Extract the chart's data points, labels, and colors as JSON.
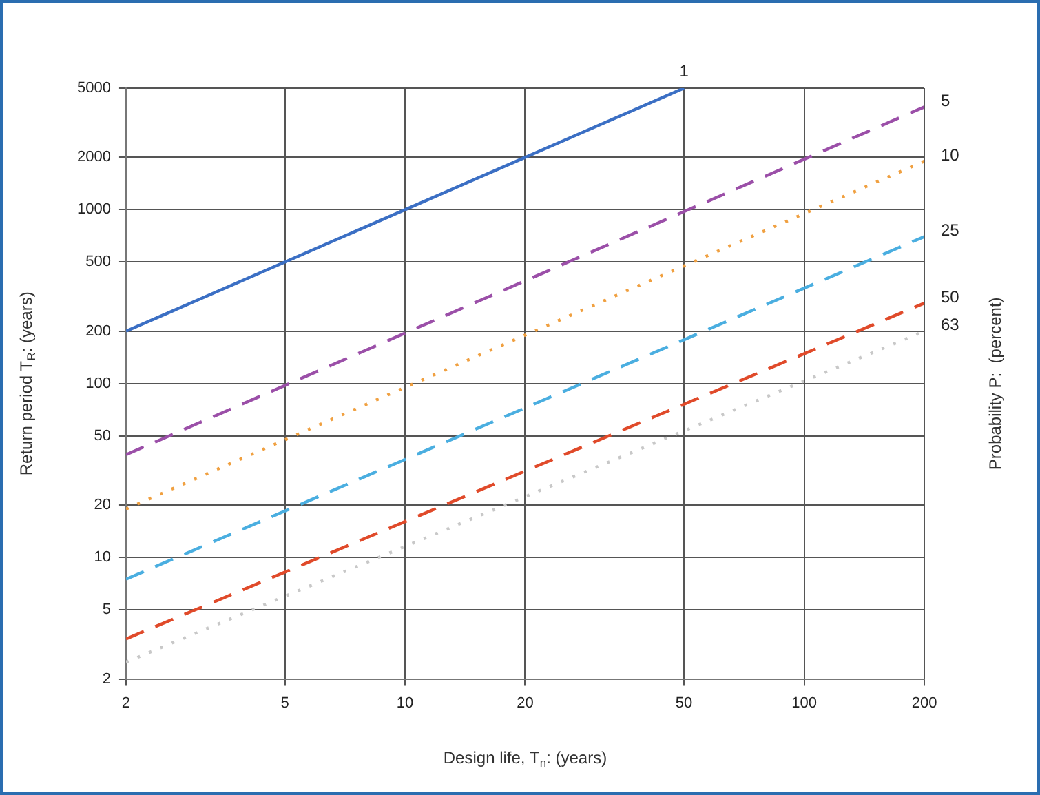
{
  "chart_data": {
    "type": "line",
    "xlabel": "Design life, T$_{n}$: (years)",
    "ylabel": "Return period T$_{R}$: (years)",
    "y2label": "Probability P:  (percent)",
    "log": "xy",
    "grid": true,
    "legend": false,
    "marker": "none",
    "xlim": [
      2,
      200
    ],
    "xticks": [
      2,
      5,
      10,
      20,
      50,
      100,
      200
    ],
    "ylim": [
      2,
      5000
    ],
    "yticks": [
      2,
      5,
      10,
      20,
      50,
      100,
      200,
      500,
      1000,
      2000,
      5000
    ],
    "series": [
      {
        "name": "1",
        "color": "#3b6fc4",
        "line_style": "solid",
        "x": [
          2,
          50
        ],
        "values": [
          200,
          5000
        ]
      },
      {
        "name": "5",
        "color": "#9b4fa8",
        "line_style": "dashed",
        "x": [
          2,
          200
        ],
        "values": [
          39,
          3900
        ]
      },
      {
        "name": "10",
        "color": "#f0a040",
        "line_style": "dotted",
        "x": [
          2,
          200
        ],
        "values": [
          19,
          1900
        ]
      },
      {
        "name": "25",
        "color": "#4aaee0",
        "line_style": "dashed",
        "x": [
          2,
          200
        ],
        "values": [
          7.5,
          700
        ]
      },
      {
        "name": "50",
        "color": "#e04a2a",
        "line_style": "dashed",
        "x": [
          2,
          200
        ],
        "values": [
          3.4,
          290
        ]
      },
      {
        "name": "63",
        "color": "#c8c8c8",
        "line_style": "dotted",
        "x": [
          2,
          200
        ],
        "values": [
          2.5,
          200
        ]
      }
    ]
  }
}
